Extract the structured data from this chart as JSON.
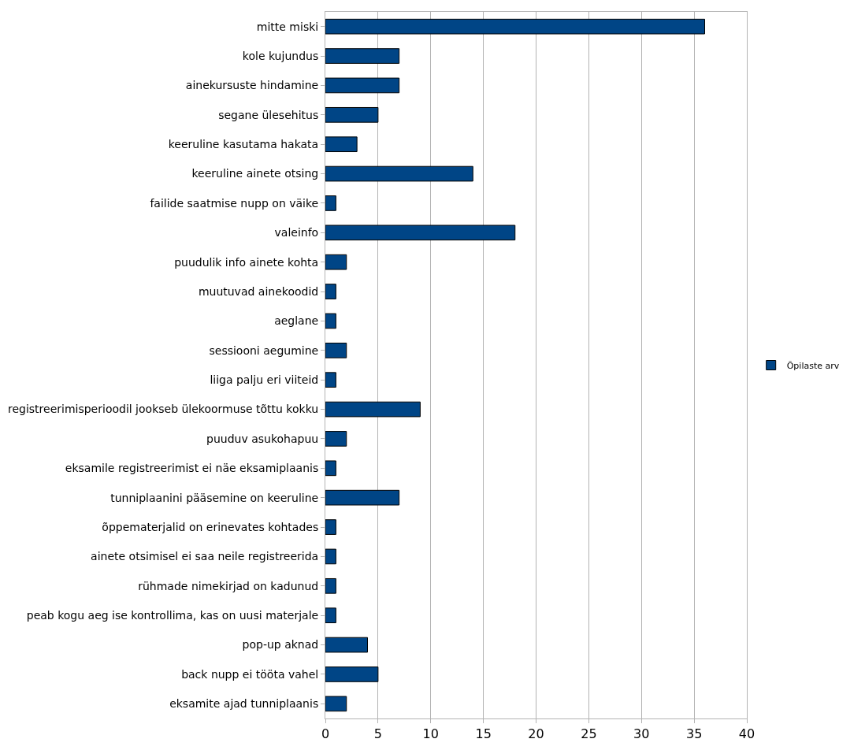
{
  "chart_data": {
    "type": "bar",
    "orientation": "horizontal",
    "categories": [
      "mitte miski",
      "kole kujundus",
      "ainekursuste hindamine",
      "segane ülesehitus",
      "keeruline kasutama hakata",
      "keeruline ainete otsing",
      "failide saatmise nupp on väike",
      "valeinfo",
      "puudulik info ainete kohta",
      "muutuvad ainekoodid",
      "aeglane",
      "sessiooni aegumine",
      "liiga palju eri viiteid",
      "registreerimisperioodil jookseb ülekoormuse tõttu kokku",
      "puuduv asukohapuu",
      "eksamile registreerimist ei näe eksamiplaanis",
      "tunniplaanini pääsemine on keeruline",
      "õppematerjalid on erinevates kohtades",
      "ainete otsimisel ei saa neile registreerida",
      "rühmade nimekirjad on kadunud",
      "peab kogu aeg ise kontrollima, kas on uusi materjale",
      "pop-up aknad",
      "back nupp ei tööta vahel",
      "eksamite ajad tunniplaanis"
    ],
    "series": [
      {
        "name": "Õpilaste arv",
        "color": "#004586",
        "values": [
          36,
          7,
          7,
          5,
          3,
          14,
          1,
          18,
          2,
          1,
          1,
          2,
          1,
          9,
          2,
          1,
          7,
          1,
          1,
          1,
          1,
          4,
          5,
          2
        ]
      }
    ],
    "xlim": [
      0,
      40
    ],
    "xticks": [
      0,
      5,
      10,
      15,
      20,
      25,
      30,
      35,
      40
    ],
    "grid": "x",
    "legend": "right"
  }
}
